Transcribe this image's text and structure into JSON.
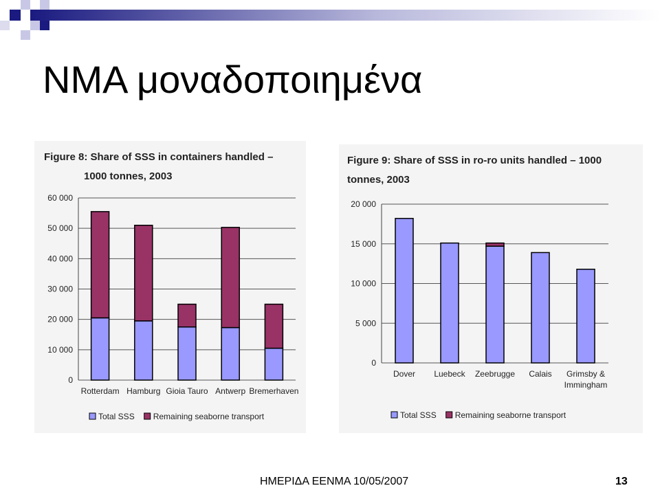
{
  "slide": {
    "title": "ΝΜΑ μοναδοποιημένα",
    "footer": "ΗΜΕΡΙΔΑ ΕΕΝΜΑ 10/05/2007",
    "page_number": "13"
  },
  "colors": {
    "total_sss": "#9999ff",
    "remaining": "#993366",
    "deco_dark": "#1a1a80",
    "deco_light": "#c8c8e6"
  },
  "chart_data": [
    {
      "type": "bar",
      "stacked": true,
      "title_lines": [
        "Figure 8: Share of SSS in containers handled –",
        "1000 tonnes, 2003"
      ],
      "categories": [
        "Rotterdam",
        "Hamburg",
        "Gioia Tauro",
        "Antwerp",
        "Bremerhaven"
      ],
      "series": [
        {
          "name": "Total SSS",
          "values": [
            20500,
            19500,
            17500,
            17300,
            10500
          ]
        },
        {
          "name": "Remaining seaborne transport",
          "values": [
            35000,
            31500,
            7500,
            33000,
            14500
          ]
        }
      ],
      "yticks": [
        "0",
        "10 000",
        "20 000",
        "30 000",
        "40 000",
        "50 000",
        "60 000"
      ],
      "ylim": [
        0,
        60000
      ],
      "grid": true,
      "legend_position": "bottom"
    },
    {
      "type": "bar",
      "stacked": true,
      "title_lines": [
        "Figure 9: Share of SSS in ro-ro units handled – 1000",
        "tonnes, 2003"
      ],
      "categories": [
        [
          "Dover"
        ],
        [
          "Luebeck"
        ],
        [
          "Zeebrugge"
        ],
        [
          "Calais"
        ],
        [
          "Grimsby &",
          "Immingham"
        ]
      ],
      "series": [
        {
          "name": "Total SSS",
          "values": [
            18200,
            15100,
            14700,
            13900,
            11800
          ]
        },
        {
          "name": "Remaining seaborne transport",
          "values": [
            0,
            0,
            400,
            0,
            0
          ]
        }
      ],
      "yticks": [
        "0",
        "5 000",
        "10 000",
        "15 000",
        "20 000"
      ],
      "ylim": [
        0,
        20000
      ],
      "grid": true,
      "legend_position": "bottom"
    }
  ]
}
